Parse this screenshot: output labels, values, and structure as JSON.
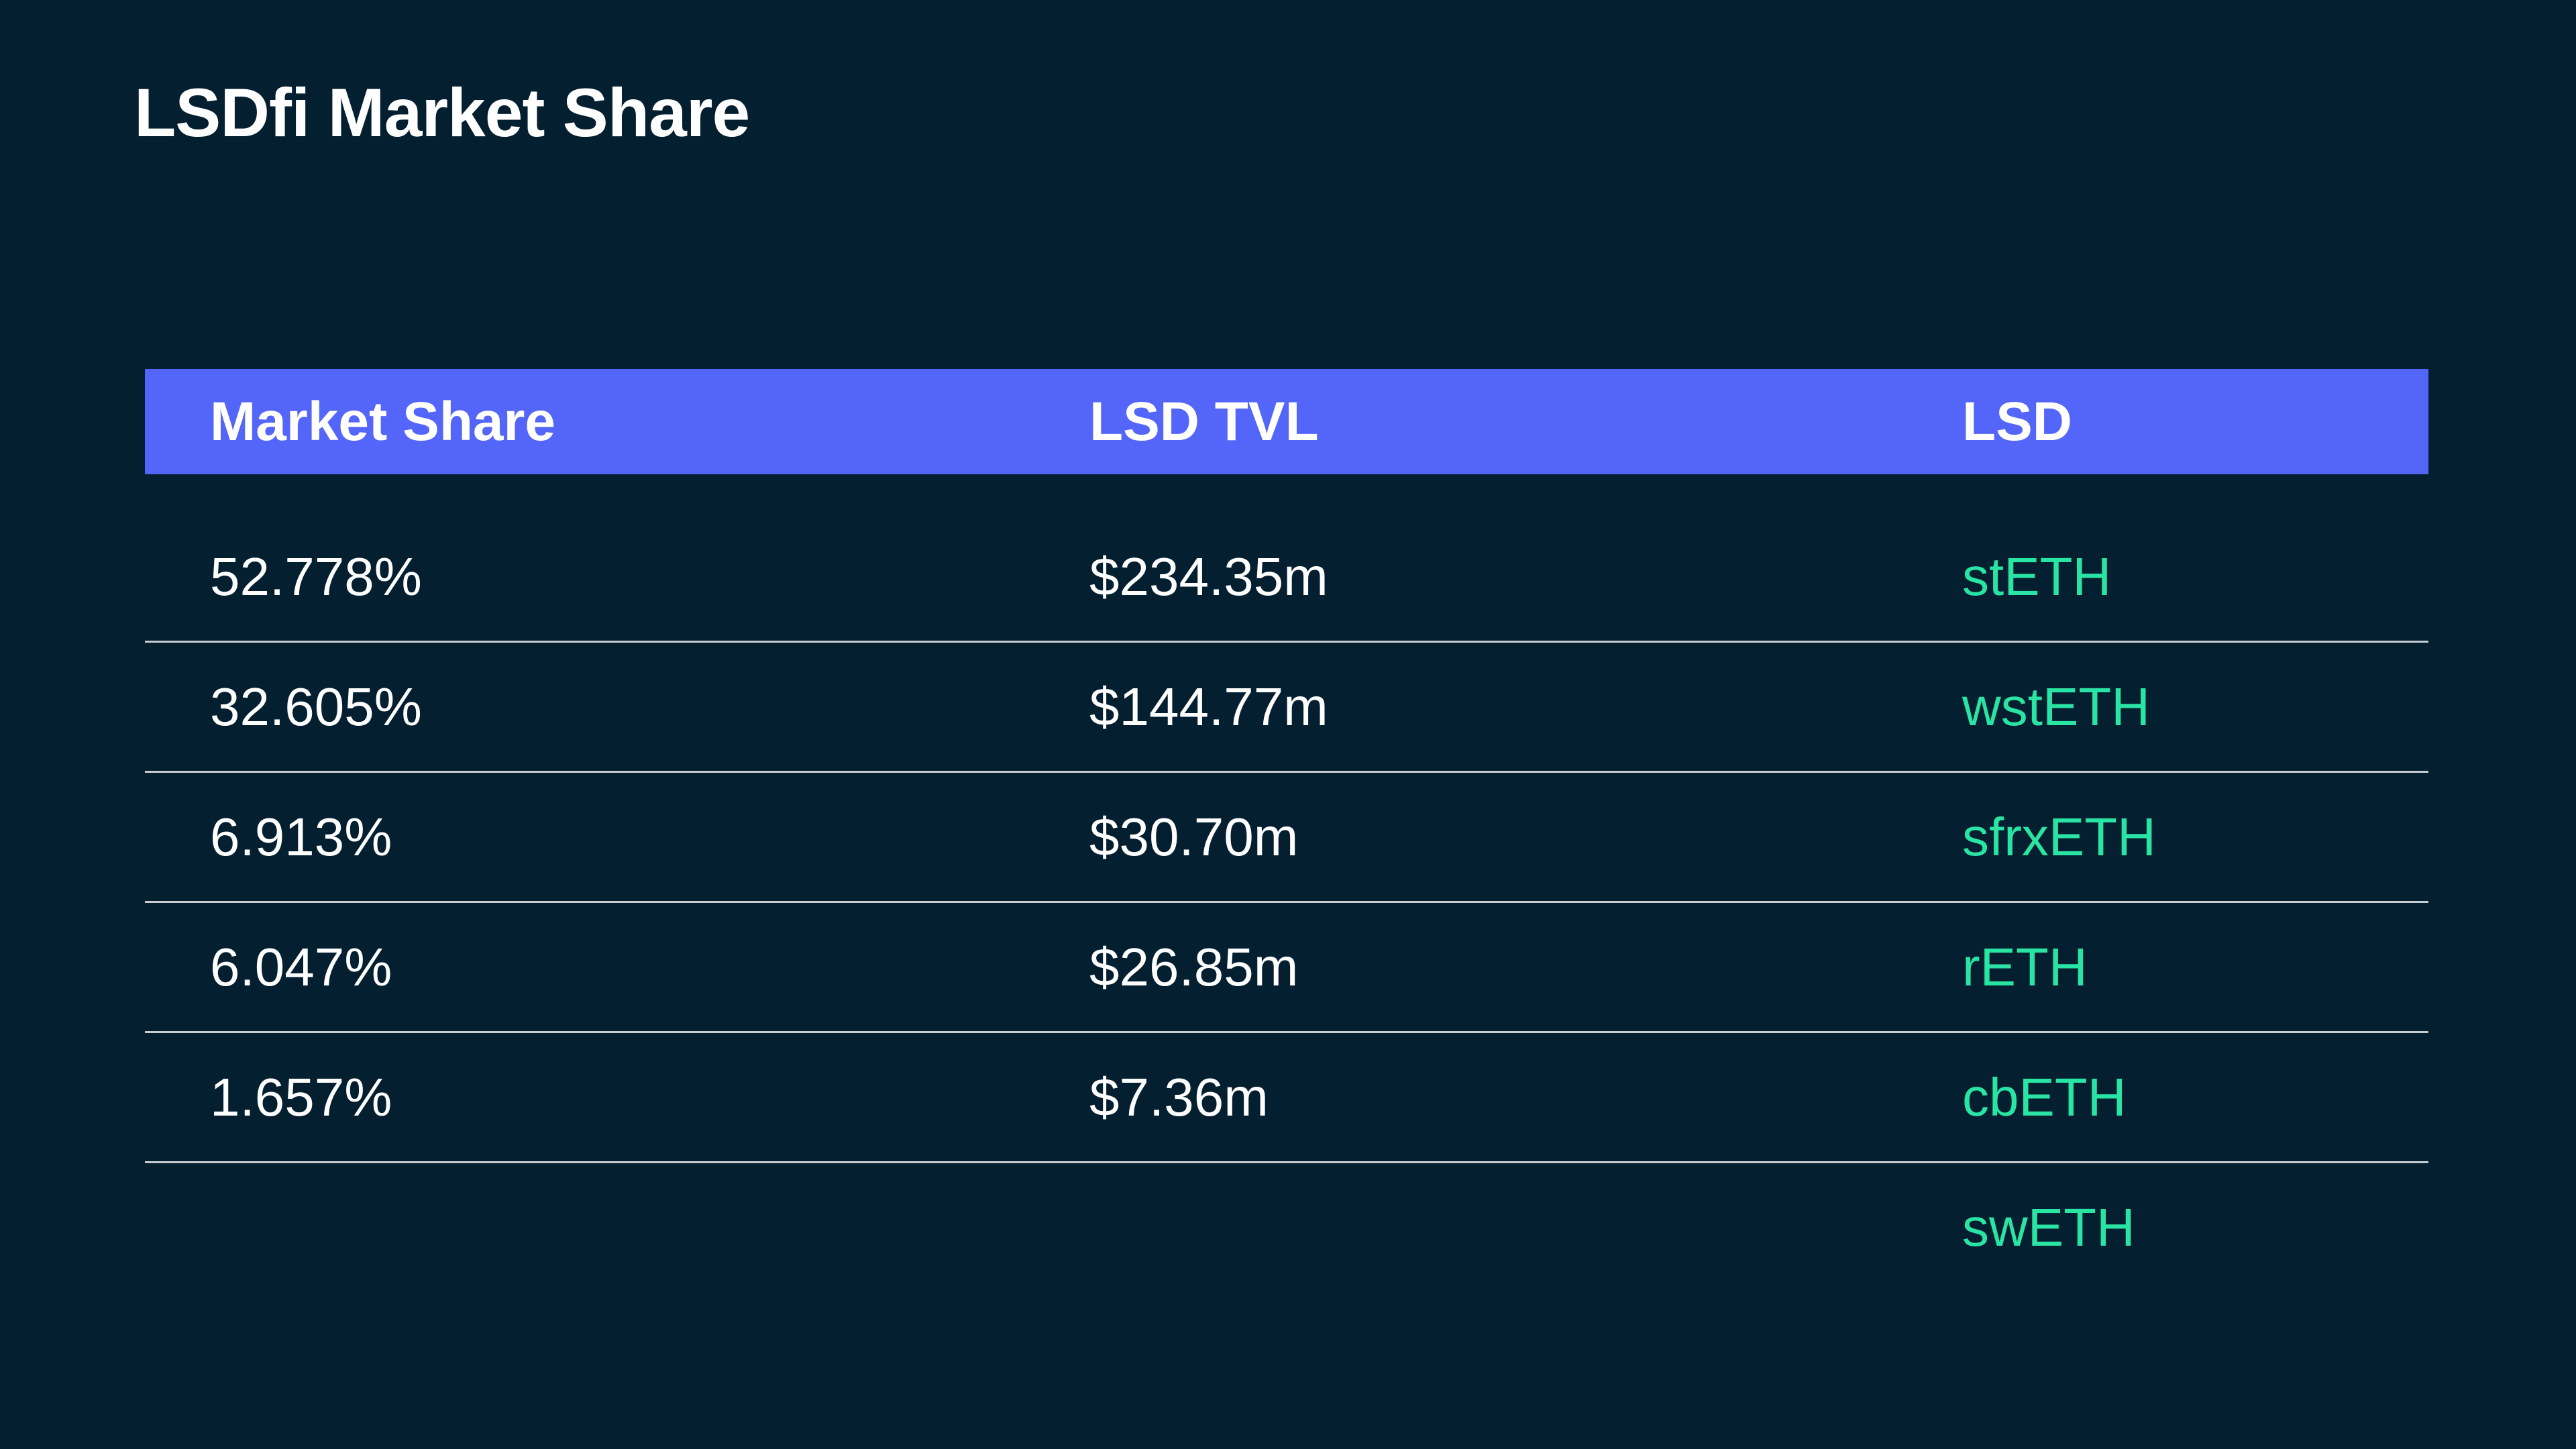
{
  "page": {
    "title": "LSDfi Market Share"
  },
  "colors": {
    "background": "#041F30",
    "header_bg": "#5465FA",
    "text": "#FFFFFF",
    "token_accent": "#2AE4A4",
    "divider": "rgba(255,255,255,0.78)"
  },
  "table": {
    "header": {
      "market_share": "Market Share",
      "lsd_tvl": "LSD TVL",
      "lsd": "LSD"
    },
    "rows": [
      {
        "market_share": "52.778%",
        "lsd_tvl": "$234.35m",
        "lsd": "stETH"
      },
      {
        "market_share": "32.605%",
        "lsd_tvl": "$144.77m",
        "lsd": "wstETH"
      },
      {
        "market_share": "6.913%",
        "lsd_tvl": "$30.70m",
        "lsd": "sfrxETH"
      },
      {
        "market_share": "6.047%",
        "lsd_tvl": "$26.85m",
        "lsd": "rETH"
      },
      {
        "market_share": "1.657%",
        "lsd_tvl": "$7.36m",
        "lsd": "cbETH"
      },
      {
        "market_share": "",
        "lsd_tvl": "",
        "lsd": "swETH"
      }
    ]
  },
  "chart_data": {
    "type": "table",
    "title": "LSDfi Market Share",
    "columns": [
      "Market Share",
      "LSD TVL",
      "LSD"
    ],
    "rows": [
      [
        "52.778%",
        "$234.35m",
        "stETH"
      ],
      [
        "32.605%",
        "$144.77m",
        "wstETH"
      ],
      [
        "6.913%",
        "$30.70m",
        "sfrxETH"
      ],
      [
        "6.047%",
        "$26.85m",
        "rETH"
      ],
      [
        "1.657%",
        "$7.36m",
        "cbETH"
      ],
      [
        "",
        "",
        "swETH"
      ]
    ],
    "market_share_pct": [
      52.778,
      32.605,
      6.913,
      6.047,
      1.657,
      null
    ],
    "lsd_tvl_million_usd": [
      234.35,
      144.77,
      30.7,
      26.85,
      7.36,
      null
    ]
  }
}
